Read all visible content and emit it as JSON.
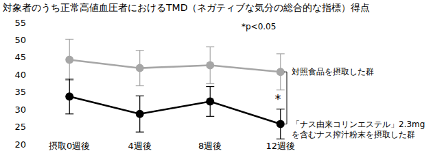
{
  "chart_data": {
    "type": "line",
    "title": "対象者のうち正常高値血圧者におけるTMD（ネガティブな気分の総合的な指標）得点",
    "categories": [
      "摂取0週後",
      "4週後",
      "8週後",
      "12週後"
    ],
    "series": [
      {
        "name": "対照食品を摂取した群",
        "color": "#a6a6a6",
        "marker": "circle",
        "line_style": "solid",
        "values": [
          44.3,
          41.9,
          42.7,
          40.8
        ],
        "errors": [
          5.9,
          5.1,
          5.3,
          5.2
        ]
      },
      {
        "name": "「ナス由来コリンエステル」2.3mg\nを含むナス搾汁粉末を摂取した群",
        "color": "#000000",
        "marker": "circle",
        "line_style": "solid",
        "values": [
          33.7,
          28.7,
          32.3,
          25.8
        ],
        "errors": [
          5.0,
          5.2,
          4.3,
          4.3
        ]
      }
    ],
    "ylim": [
      20,
      55
    ],
    "yticks": [
      20,
      25,
      30,
      35,
      40,
      45,
      50,
      55
    ],
    "grid": false,
    "annotations": [
      "*p<0.05",
      "*"
    ]
  }
}
